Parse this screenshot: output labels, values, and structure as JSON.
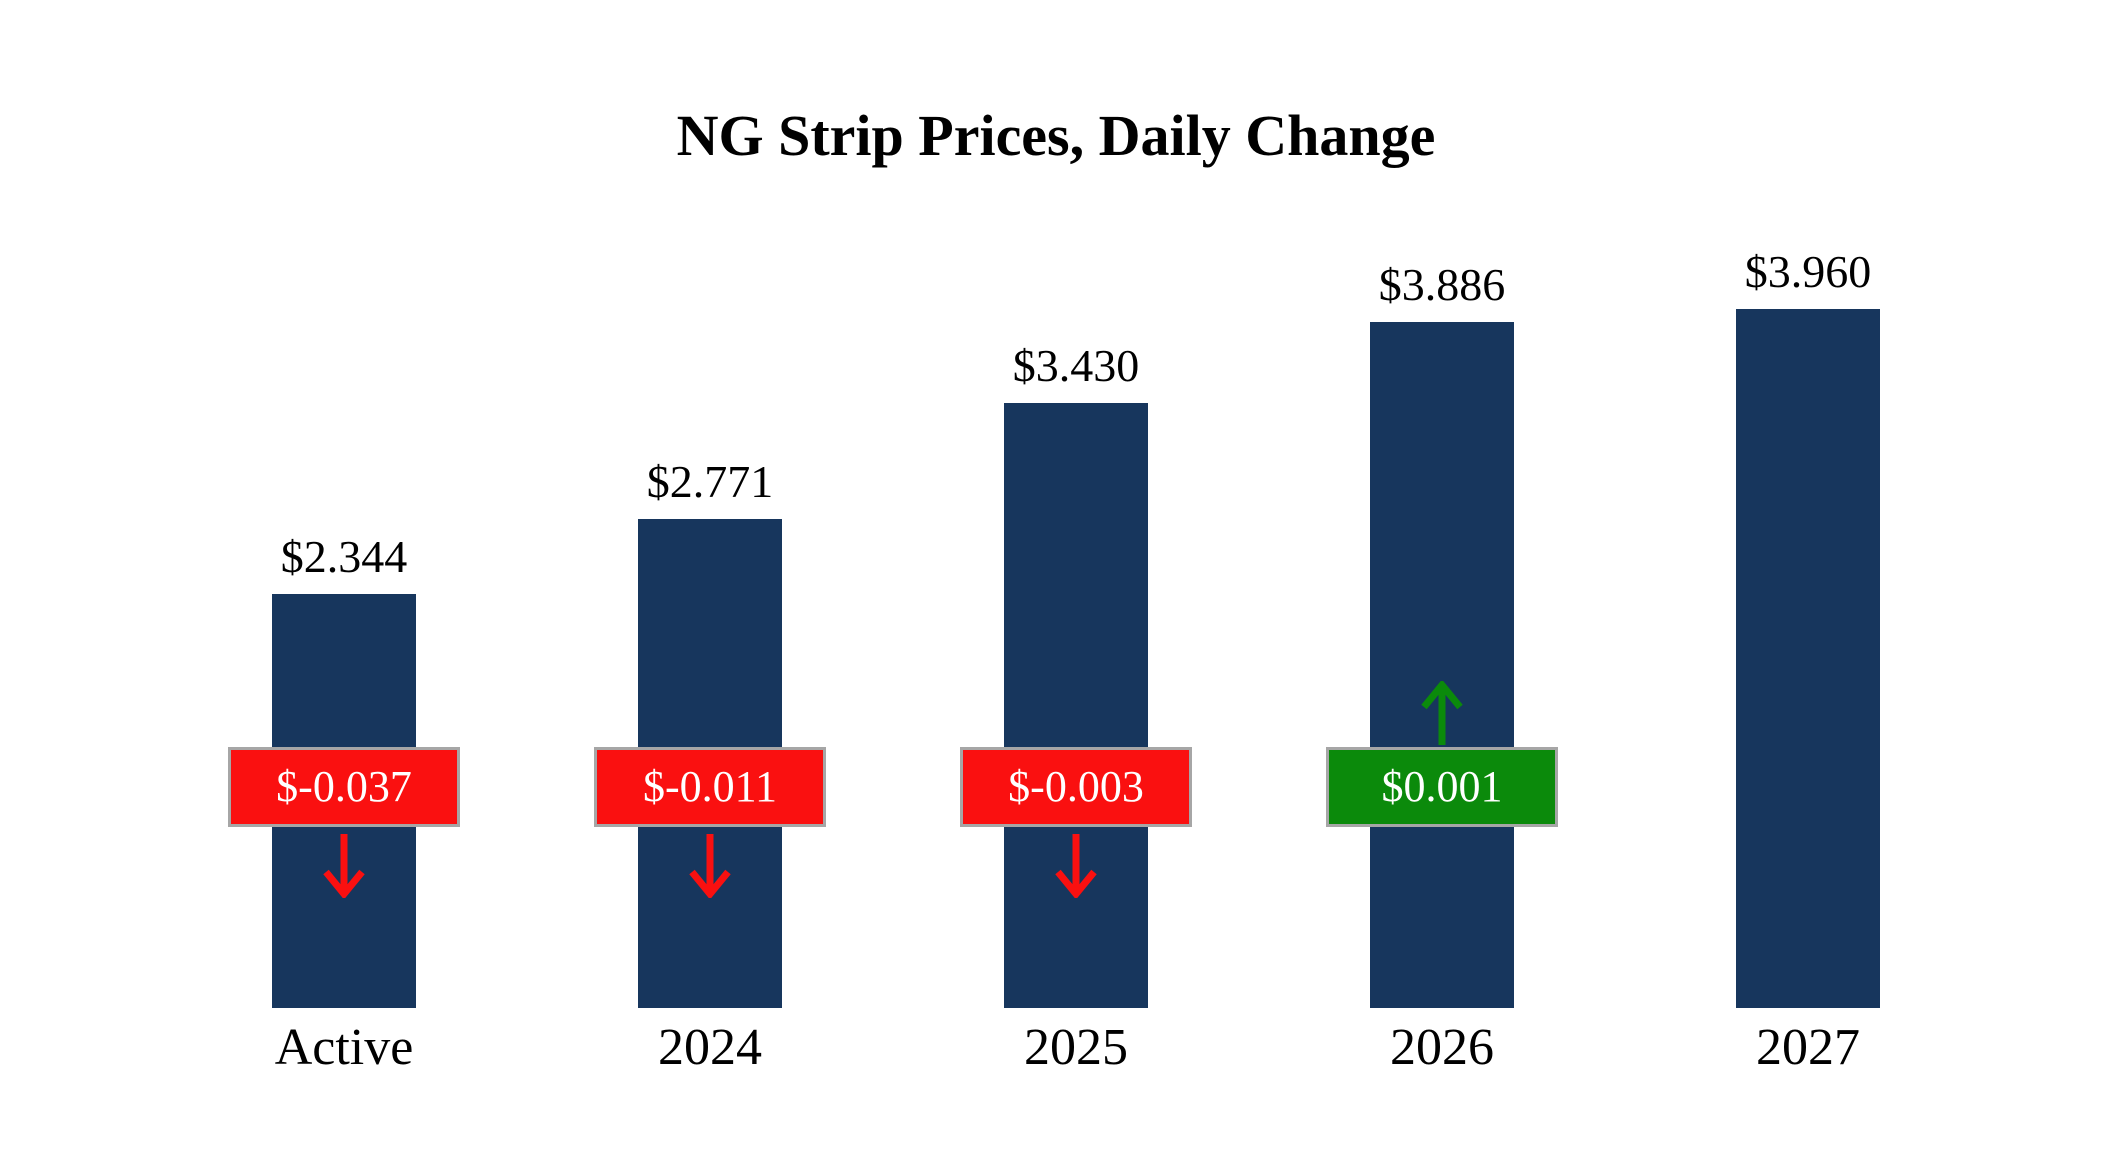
{
  "title": "NG Strip Prices, Daily Change",
  "colors": {
    "bar": "#17365d",
    "negative": "#fa1010",
    "positive": "#0b8a0b",
    "badge_border": "#a6a6a6",
    "badge_text": "#ffffff",
    "background": "#ffffff",
    "text": "#000000"
  },
  "chart_data": {
    "type": "bar",
    "title": "NG Strip Prices, Daily Change",
    "categories": [
      "Active",
      "2024",
      "2025",
      "2026",
      "2027"
    ],
    "values": [
      2.344,
      2.771,
      3.43,
      3.886,
      3.96
    ],
    "value_labels": [
      "$2.344",
      "$2.771",
      "$3.430",
      "$3.886",
      "$3.960"
    ],
    "changes": [
      -0.037,
      -0.011,
      -0.003,
      0.001,
      null
    ],
    "change_labels": [
      "$-0.037",
      "$-0.011",
      "$-0.003",
      "$0.001",
      null
    ],
    "xlabel": "",
    "ylabel": "",
    "ylim": [
      0,
      4.2
    ],
    "grid": false,
    "legend": false,
    "bar_color": "#17365d",
    "negative_change_color": "#fa1010",
    "positive_change_color": "#0b8a0b"
  }
}
